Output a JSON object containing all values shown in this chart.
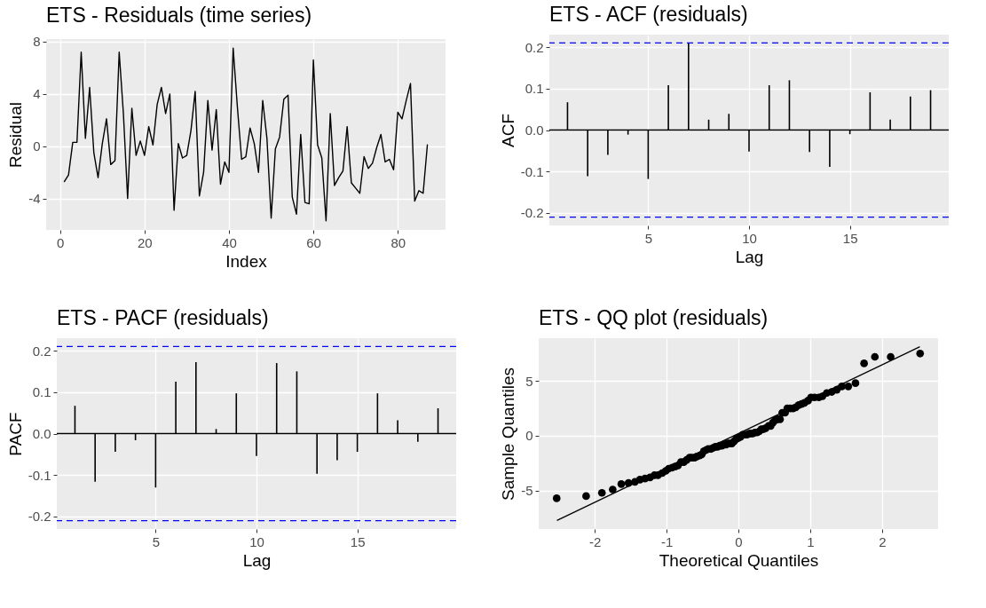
{
  "chart_data": [
    {
      "type": "line",
      "title": "ETS - Residuals (time series)",
      "xlabel": "Index",
      "ylabel": "Residual",
      "color": "#000000",
      "x": [
        1,
        2,
        3,
        4,
        5,
        6,
        7,
        8,
        9,
        10,
        11,
        12,
        13,
        14,
        15,
        16,
        17,
        18,
        19,
        20,
        21,
        22,
        23,
        24,
        25,
        26,
        27,
        28,
        29,
        30,
        31,
        32,
        33,
        34,
        35,
        36,
        37,
        38,
        39,
        40,
        41,
        42,
        43,
        44,
        45,
        46,
        47,
        48,
        49,
        50,
        51,
        52,
        53,
        54,
        55,
        56,
        57,
        58,
        59,
        60,
        61,
        62,
        63,
        64,
        65,
        66,
        67,
        68,
        69,
        70,
        71,
        72,
        73,
        74,
        75,
        76,
        77,
        78,
        79,
        80,
        81,
        82,
        83,
        84,
        85,
        86,
        87
      ],
      "values": [
        -2.7,
        -2.2,
        0.3,
        0.3,
        7.2,
        0.6,
        4.5,
        -0.5,
        -2.4,
        0.2,
        2.1,
        -1.4,
        -1.1,
        7.2,
        2.5,
        -4.0,
        2.9,
        -0.7,
        0.4,
        -0.7,
        1.5,
        0.1,
        3.2,
        4.5,
        2.5,
        4.0,
        -4.9,
        0.2,
        -0.9,
        -0.7,
        1.2,
        4.2,
        -3.8,
        -2.0,
        3.5,
        -0.3,
        2.8,
        -2.9,
        -1.2,
        -2.0,
        7.5,
        3.0,
        -1.0,
        -0.8,
        1.4,
        0.2,
        -2.0,
        3.5,
        0.6,
        -5.5,
        -0.2,
        0.7,
        3.6,
        3.9,
        -3.9,
        -5.2,
        0.9,
        -4.3,
        -4.4,
        6.6,
        0.1,
        -0.9,
        -5.7,
        2.5,
        -3.0,
        -2.4,
        -1.9,
        1.5,
        -2.8,
        -3.2,
        -3.6,
        -0.8,
        -1.7,
        -1.3,
        -0.1,
        0.9,
        -1.2,
        -1.0,
        -1.8,
        2.6,
        2.1,
        3.5,
        4.8,
        -4.2,
        -3.4,
        -3.6,
        0.1
      ],
      "xlim": [
        -3.3,
        91.3
      ],
      "xticks": [
        0,
        20,
        40,
        60,
        80
      ],
      "ylim": [
        -6.4,
        8.2
      ],
      "yticks": [
        -4,
        0,
        4,
        8
      ],
      "grid": true
    },
    {
      "type": "bar",
      "title": "ETS - ACF (residuals)",
      "xlabel": "Lag",
      "ylabel": "ACF",
      "color": "#000000",
      "x": [
        1,
        2,
        3,
        4,
        5,
        6,
        7,
        8,
        9,
        10,
        11,
        12,
        13,
        14,
        15,
        16,
        17,
        18,
        19
      ],
      "values": [
        0.067,
        -0.111,
        -0.06,
        -0.011,
        -0.118,
        0.108,
        0.209,
        0.025,
        0.039,
        -0.052,
        0.108,
        0.12,
        -0.053,
        -0.089,
        -0.01,
        0.091,
        0.025,
        0.081,
        0.096
      ],
      "xlim": [
        0.1,
        19.9
      ],
      "xticks": [
        5,
        10,
        15
      ],
      "ylim": [
        -0.23,
        0.23
      ],
      "yticks": [
        -0.2,
        -0.1,
        {
          "value": 0,
          "label": "0.0"
        },
        0.1,
        0.2
      ],
      "grid": true,
      "ref_lines": [
        {
          "axis": "y",
          "value": 0,
          "color": "#000000",
          "line_style": "solid"
        },
        {
          "axis": "y",
          "value": 0.21,
          "color": "#0000ff",
          "line_style": "dashed"
        },
        {
          "axis": "y",
          "value": -0.21,
          "color": "#0000ff",
          "line_style": "dashed"
        }
      ]
    },
    {
      "type": "bar",
      "title": "ETS - PACF (residuals)",
      "xlabel": "Lag",
      "ylabel": "PACF",
      "color": "#000000",
      "x": [
        1,
        2,
        3,
        4,
        5,
        6,
        7,
        8,
        9,
        10,
        11,
        12,
        13,
        14,
        15,
        16,
        17,
        18,
        19
      ],
      "values": [
        0.067,
        -0.116,
        -0.044,
        -0.016,
        -0.13,
        0.125,
        0.172,
        0.011,
        0.097,
        -0.054,
        0.17,
        0.15,
        -0.097,
        -0.064,
        -0.044,
        0.097,
        0.032,
        -0.02,
        0.061
      ],
      "xlim": [
        0.1,
        19.9
      ],
      "xticks": [
        5,
        10,
        15
      ],
      "ylim": [
        -0.23,
        0.23
      ],
      "yticks": [
        -0.2,
        -0.1,
        {
          "value": 0,
          "label": "0.0"
        },
        0.1,
        0.2
      ],
      "grid": true,
      "ref_lines": [
        {
          "axis": "y",
          "value": 0,
          "color": "#000000",
          "line_style": "solid"
        },
        {
          "axis": "y",
          "value": 0.21,
          "color": "#0000ff",
          "line_style": "dashed"
        },
        {
          "axis": "y",
          "value": -0.21,
          "color": "#0000ff",
          "line_style": "dashed"
        }
      ]
    },
    {
      "type": "scatter",
      "title": "ETS - QQ plot (residuals)",
      "xlabel": "Theoretical Quantiles",
      "ylabel": "Sample Quantiles",
      "series": [
        {
          "type": "scatter",
          "marker": "circle",
          "color": "#000000",
          "x": [
            -2.53,
            -2.12,
            -1.9,
            -1.75,
            -1.63,
            -1.53,
            -1.44,
            -1.37,
            -1.3,
            -1.23,
            -1.17,
            -1.12,
            -1.06,
            -1.01,
            -0.97,
            -0.92,
            -0.88,
            -0.84,
            -0.8,
            -0.76,
            -0.72,
            -0.68,
            -0.65,
            -0.61,
            -0.58,
            -0.54,
            -0.51,
            -0.48,
            -0.45,
            -0.42,
            -0.38,
            -0.35,
            -0.32,
            -0.29,
            -0.26,
            -0.23,
            -0.2,
            -0.17,
            -0.15,
            -0.12,
            -0.09,
            -0.06,
            -0.03,
            0,
            0.03,
            0.06,
            0.09,
            0.12,
            0.15,
            0.17,
            0.2,
            0.23,
            0.26,
            0.29,
            0.32,
            0.35,
            0.38,
            0.42,
            0.45,
            0.48,
            0.51,
            0.54,
            0.58,
            0.61,
            0.65,
            0.68,
            0.72,
            0.76,
            0.8,
            0.84,
            0.88,
            0.92,
            0.97,
            1.01,
            1.06,
            1.12,
            1.17,
            1.23,
            1.3,
            1.37,
            1.44,
            1.53,
            1.63,
            1.75,
            1.9,
            2.12,
            2.53
          ],
          "values": [
            -5.7,
            -5.5,
            -5.2,
            -4.9,
            -4.4,
            -4.3,
            -4.2,
            -4.0,
            -3.9,
            -3.8,
            -3.6,
            -3.6,
            -3.4,
            -3.2,
            -3.0,
            -2.9,
            -2.8,
            -2.7,
            -2.4,
            -2.4,
            -2.2,
            -2.0,
            -2.0,
            -2.0,
            -1.9,
            -1.8,
            -1.7,
            -1.4,
            -1.3,
            -1.2,
            -1.2,
            -1.1,
            -1.0,
            -1.0,
            -0.9,
            -0.9,
            -0.8,
            -0.8,
            -0.7,
            -0.7,
            -0.7,
            -0.5,
            -0.3,
            -0.2,
            -0.1,
            0.1,
            0.1,
            0.1,
            0.2,
            0.2,
            0.2,
            0.3,
            0.3,
            0.4,
            0.6,
            0.6,
            0.7,
            0.9,
            0.9,
            1.2,
            1.4,
            1.5,
            1.5,
            2.1,
            2.1,
            2.5,
            2.5,
            2.5,
            2.6,
            2.8,
            2.9,
            3.0,
            3.2,
            3.5,
            3.5,
            3.5,
            3.6,
            3.9,
            4.0,
            4.2,
            4.5,
            4.5,
            4.8,
            6.6,
            7.2,
            7.2,
            7.5
          ]
        },
        {
          "type": "line",
          "color": "#000000",
          "x": [
            -2.52,
            2.52
          ],
          "values": [
            -7.7,
            8.1
          ]
        }
      ],
      "xlim": [
        -2.78,
        2.78
      ],
      "xticks": [
        -2,
        -1,
        0,
        1,
        2
      ],
      "ylim": [
        -8.5,
        8.9
      ],
      "yticks": [
        -5,
        0,
        5
      ],
      "grid": true
    }
  ]
}
